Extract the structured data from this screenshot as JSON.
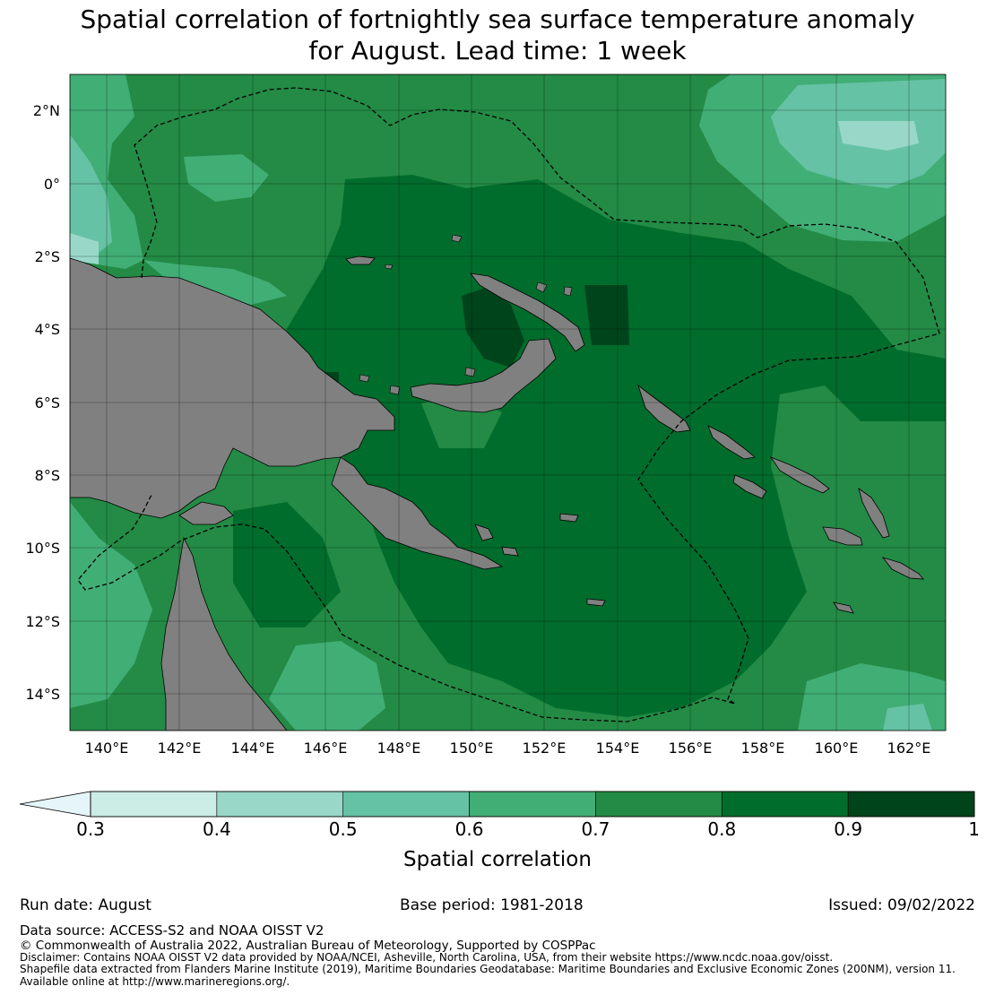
{
  "title": {
    "line1": "Spatial correlation of fortnightly sea surface temperature anomaly",
    "line2": "for August. Lead time: 1 week"
  },
  "map": {
    "lon_range": [
      139,
      163
    ],
    "lat_range": [
      -15,
      3
    ],
    "lon_ticks": [
      "140°E",
      "142°E",
      "144°E",
      "146°E",
      "148°E",
      "150°E",
      "152°E",
      "154°E",
      "156°E",
      "158°E",
      "160°E",
      "162°E"
    ],
    "lon_tick_values": [
      140,
      142,
      144,
      146,
      148,
      150,
      152,
      154,
      156,
      158,
      160,
      162
    ],
    "lat_ticks": [
      "2°N",
      "0°",
      "2°S",
      "4°S",
      "6°S",
      "8°S",
      "10°S",
      "12°S",
      "14°S"
    ],
    "lat_tick_values": [
      2,
      0,
      -2,
      -4,
      -6,
      -8,
      -10,
      -12,
      -14
    ],
    "land_color": "#808080",
    "grid": true
  },
  "colorbar": {
    "title": "Spatial correlation",
    "tick_labels": [
      "0.3",
      "0.4",
      "0.5",
      "0.6",
      "0.7",
      "0.8",
      "0.9",
      "1"
    ],
    "bins": [
      {
        "min": 0.3,
        "max": 0.4,
        "color": "#ccece6"
      },
      {
        "min": 0.4,
        "max": 0.5,
        "color": "#99d8c9"
      },
      {
        "min": 0.5,
        "max": 0.6,
        "color": "#66c2a4"
      },
      {
        "min": 0.6,
        "max": 0.7,
        "color": "#41ae76"
      },
      {
        "min": 0.7,
        "max": 0.8,
        "color": "#238b45"
      },
      {
        "min": 0.8,
        "max": 0.9,
        "color": "#006d2c"
      },
      {
        "min": 0.9,
        "max": 1.0,
        "color": "#00441b"
      }
    ],
    "extend_min_color": "#e5f5f9"
  },
  "footer": {
    "run_date": "Run date: August",
    "base_period": "Base period: 1981-2018",
    "issued": "Issued: 09/02/2022",
    "data_source": "Data source: ACCESS-S2 and NOAA OISST V2",
    "copyright": "© Commonwealth of Australia 2022, Australian Bureau of Meteorology, Supported by COSPPac",
    "disclaimer": "Disclaimer: Contains NOAA OISST V2 data provided by NOAA/NCEI, Asheville, North Carolina, USA, from their website https://www.ncdc.noaa.gov/oisst.",
    "shapefile": "Shapefile data extracted from Flanders Marine Institute (2019), Maritime Boundaries Geodatabase: Maritime Boundaries and Exclusive Economic Zones (200NM), version 11.",
    "available": "Available online at http://www.marineregions.org/."
  }
}
